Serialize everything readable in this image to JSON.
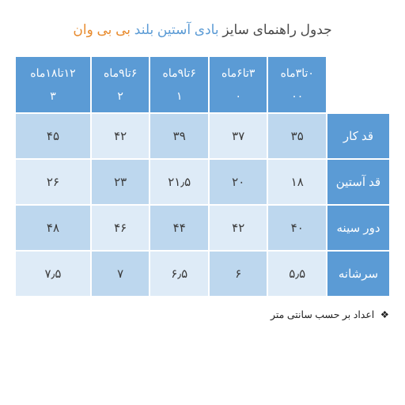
{
  "title": {
    "p1": "جدول راهنمای سایز",
    "p2": "بادی آستین بلند",
    "p3": "بی بی وان"
  },
  "columns": [
    {
      "age": "۰تا۳ماه",
      "code": "۰۰"
    },
    {
      "age": "۳تا۶ماه",
      "code": "۰"
    },
    {
      "age": "۶تا۹ماه",
      "code": "۱"
    },
    {
      "age": "۶تا۹ماه",
      "code": "۲"
    },
    {
      "age": "۱۲تا۱۸ماه",
      "code": "۳"
    }
  ],
  "rows": [
    {
      "label": "قد کار",
      "cells": [
        "۳۵",
        "۳۷",
        "۳۹",
        "۴۲",
        "۴۵"
      ]
    },
    {
      "label": "قد آستین",
      "cells": [
        "۱۸",
        "۲۰",
        "۲۱٫۵",
        "۲۳",
        "۲۶"
      ]
    },
    {
      "label": "دور سینه",
      "cells": [
        "۴۰",
        "۴۲",
        "۴۴",
        "۴۶",
        "۴۸"
      ]
    },
    {
      "label": "سرشانه",
      "cells": [
        "۵٫۵",
        "۶",
        "۶٫۵",
        "۷",
        "۷٫۵"
      ]
    }
  ],
  "footnote": "اعداد بر حسب سانتی متر",
  "colors": {
    "header_bg": "#5b9bd5",
    "cell_dark": "#bdd7ee",
    "cell_light": "#deebf7",
    "title_gray": "#4a4a4a",
    "title_blue": "#5b9bd5",
    "title_orange": "#e88b2e"
  }
}
